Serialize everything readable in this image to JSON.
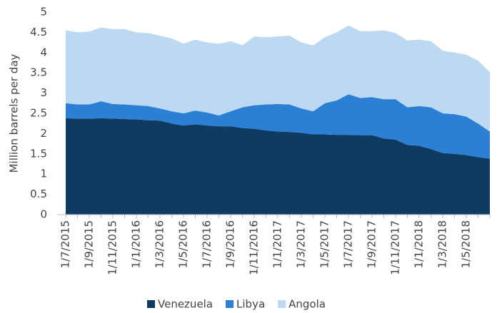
{
  "chart_data": {
    "type": "stacked_area",
    "y_label": "Million barrels per day",
    "categories": [
      "1/7/2015",
      null,
      "1/9/2015",
      null,
      "1/11/2015",
      null,
      "1/1/2016",
      null,
      "1/3/2016",
      null,
      "1/5/2016",
      null,
      "1/7/2016",
      null,
      "1/9/2016",
      null,
      "1/11/2016",
      null,
      "1/1/2017",
      null,
      "1/3/2017",
      null,
      "1/5/2017",
      null,
      "1/7/2017",
      null,
      "1/9/2017",
      null,
      "1/11/2017",
      null,
      "1/1/2018",
      null,
      "1/3/2018",
      null,
      "1/5/2018",
      null,
      null
    ],
    "series": [
      {
        "name": "Venezuela",
        "color": "#103b60",
        "values": [
          2.38,
          2.37,
          2.37,
          2.38,
          2.37,
          2.36,
          2.35,
          2.33,
          2.32,
          2.25,
          2.2,
          2.23,
          2.2,
          2.18,
          2.18,
          2.14,
          2.12,
          2.08,
          2.05,
          2.04,
          2.02,
          1.98,
          1.98,
          1.97,
          1.97,
          1.96,
          1.96,
          1.88,
          1.85,
          1.72,
          1.7,
          1.62,
          1.52,
          1.5,
          1.47,
          1.42,
          1.38
        ]
      },
      {
        "name": "Libya",
        "color": "#2b80d5",
        "values": [
          0.37,
          0.35,
          0.35,
          0.42,
          0.36,
          0.36,
          0.35,
          0.35,
          0.3,
          0.3,
          0.3,
          0.34,
          0.32,
          0.27,
          0.37,
          0.51,
          0.58,
          0.64,
          0.68,
          0.68,
          0.6,
          0.57,
          0.77,
          0.85,
          1.0,
          0.92,
          0.94,
          0.97,
          1.0,
          0.93,
          0.98,
          1.03,
          0.98,
          0.98,
          0.95,
          0.83,
          0.67
        ]
      },
      {
        "name": "Angola",
        "color": "#bdd8f1",
        "values": [
          1.8,
          1.78,
          1.8,
          1.82,
          1.85,
          1.86,
          1.8,
          1.8,
          1.8,
          1.8,
          1.72,
          1.75,
          1.73,
          1.77,
          1.73,
          1.53,
          1.7,
          1.66,
          1.67,
          1.7,
          1.63,
          1.63,
          1.63,
          1.68,
          1.7,
          1.65,
          1.63,
          1.7,
          1.63,
          1.65,
          1.64,
          1.63,
          1.55,
          1.52,
          1.53,
          1.55,
          1.47
        ]
      }
    ],
    "ylim": [
      0,
      5
    ],
    "yticks": [
      0,
      0.5,
      1,
      1.5,
      2,
      2.5,
      3,
      3.5,
      4,
      4.5,
      5
    ],
    "legend": "bottom"
  }
}
